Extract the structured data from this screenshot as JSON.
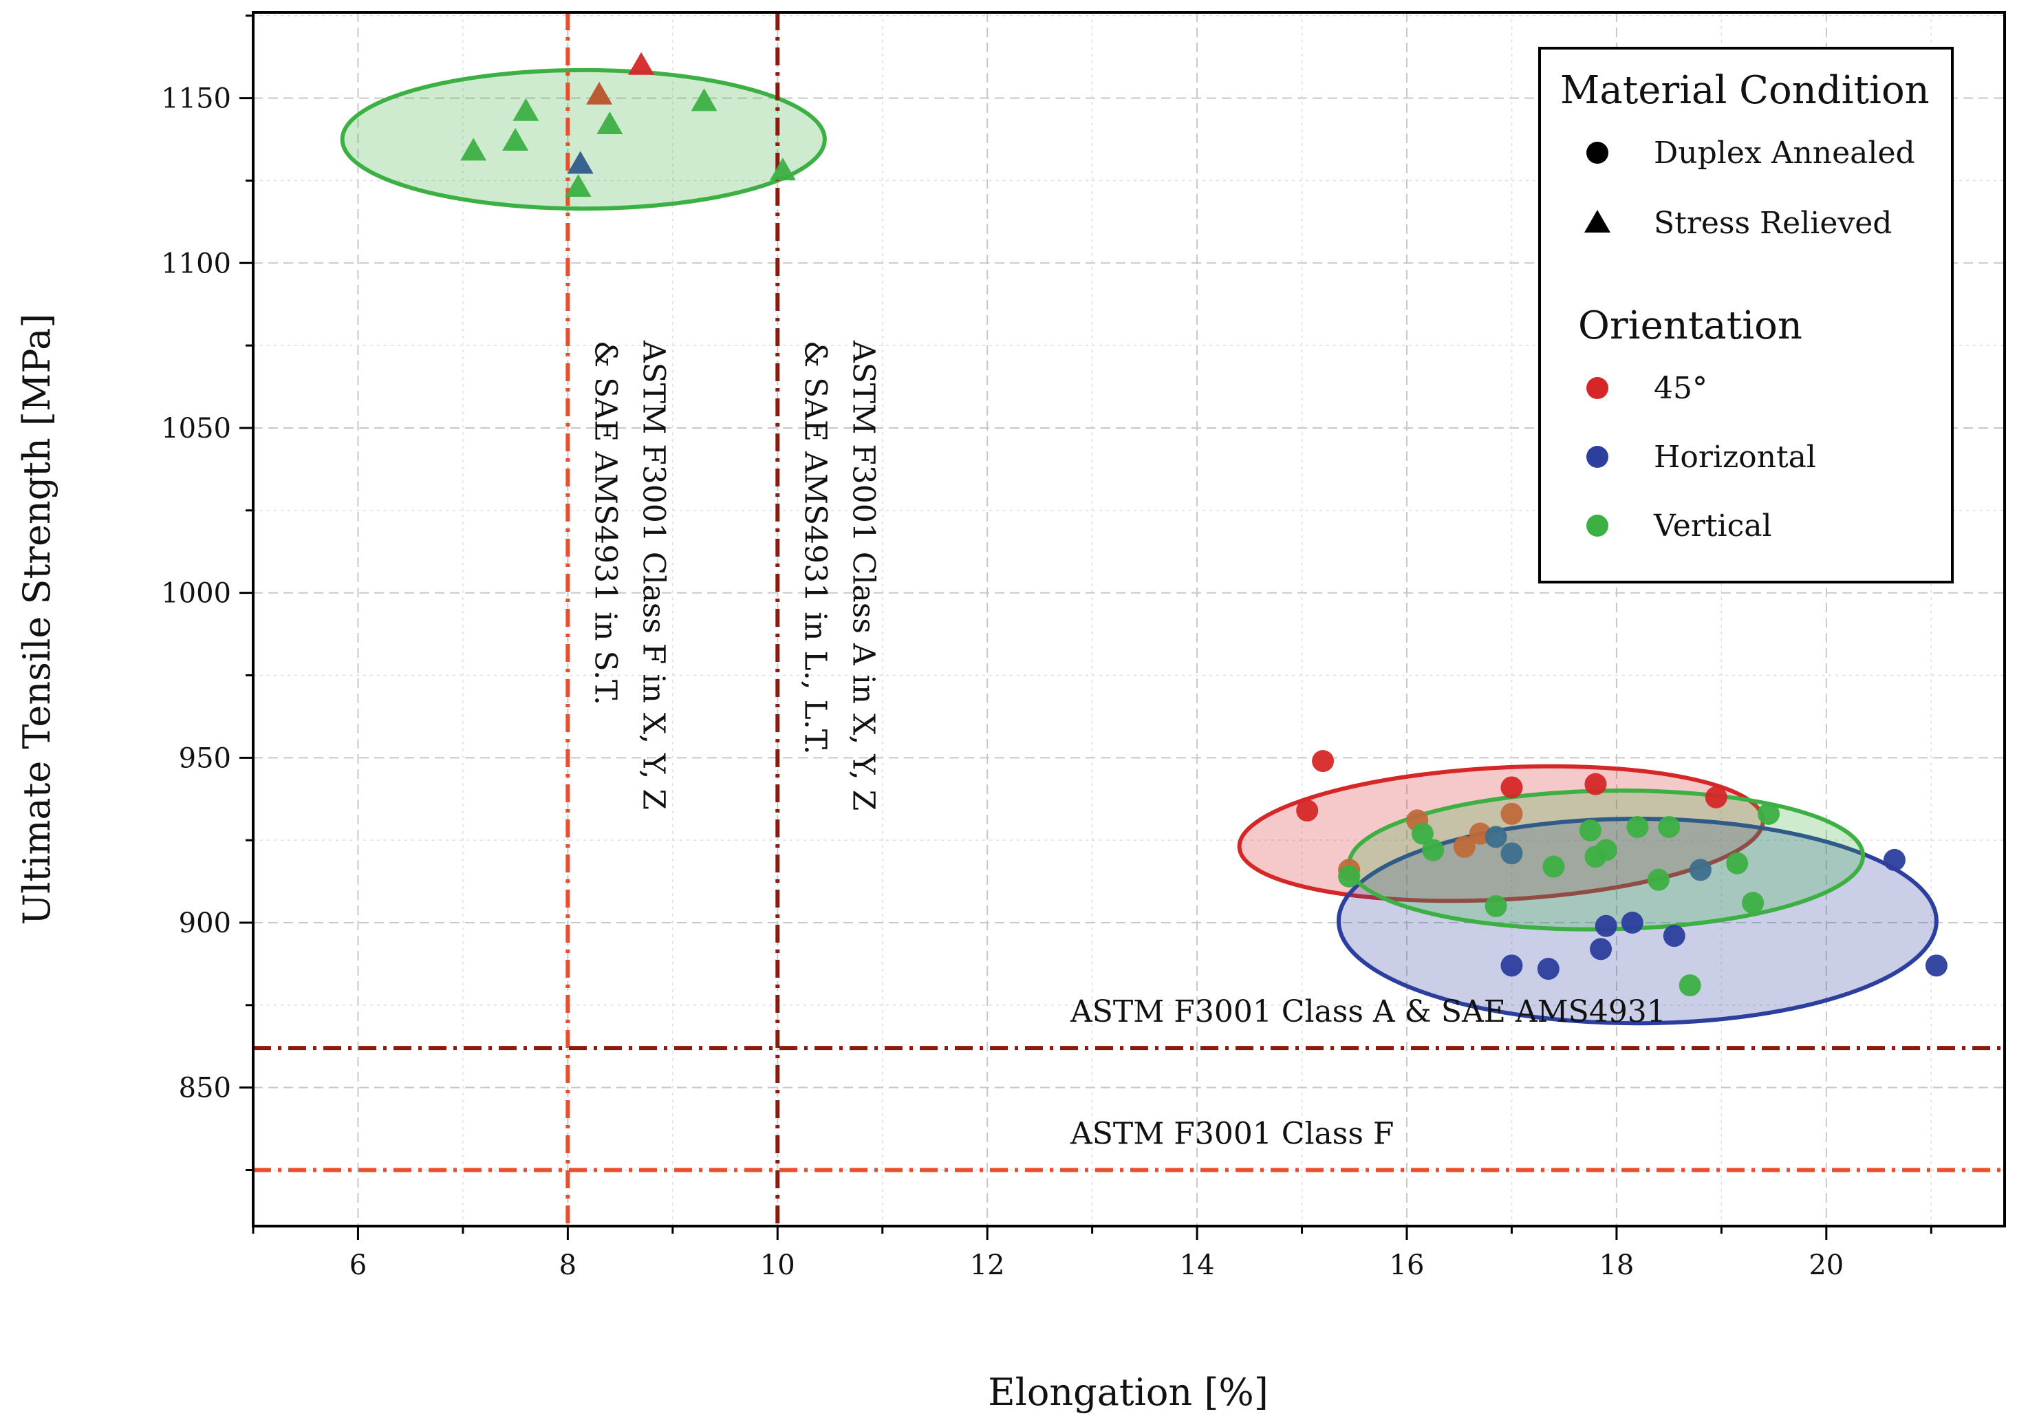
{
  "chart_data": {
    "type": "scatter",
    "xlabel": "Elongation [%]",
    "ylabel": "Ultimate Tensile Strength [MPa]",
    "xlim": [
      5.0,
      21.7
    ],
    "ylim": [
      808,
      1176
    ],
    "xticks": [
      6,
      8,
      10,
      12,
      14,
      16,
      18,
      20
    ],
    "yticks": [
      850,
      900,
      950,
      1000,
      1050,
      1100,
      1150
    ],
    "grid": true,
    "colors": {
      "45deg": "#d62728",
      "horizontal": "#2c3e9e",
      "vertical": "#3cb043",
      "classF": "#e8502d",
      "classA": "#8b1a10"
    },
    "series": [
      {
        "name": "Stress Relieved - Vertical",
        "marker": "triangle",
        "color": "#3cb043",
        "points": [
          [
            7.1,
            1134
          ],
          [
            7.5,
            1137
          ],
          [
            7.6,
            1146
          ],
          [
            8.1,
            1123
          ],
          [
            8.4,
            1142
          ],
          [
            9.3,
            1149
          ],
          [
            10.05,
            1128
          ]
        ]
      },
      {
        "name": "Stress Relieved - 45°",
        "marker": "triangle",
        "color": "#d62728",
        "points": [
          [
            8.7,
            1160
          ]
        ]
      },
      {
        "name": "Stress Relieved - 45°/Vertical",
        "marker": "triangle",
        "color": "#b8542a",
        "points": [
          [
            8.3,
            1151
          ]
        ]
      },
      {
        "name": "Stress Relieved - Horizontal",
        "marker": "triangle",
        "color": "#2f5c8a",
        "points": [
          [
            8.12,
            1130
          ]
        ]
      },
      {
        "name": "Duplex Annealed - 45°",
        "marker": "circle",
        "color": "#d62728",
        "points": [
          [
            15.05,
            934
          ],
          [
            15.2,
            949
          ],
          [
            17.0,
            941
          ],
          [
            17.8,
            942
          ],
          [
            18.95,
            938
          ]
        ]
      },
      {
        "name": "Duplex Annealed - 45°/Vertical",
        "marker": "circle",
        "color": "#bf6a3a",
        "points": [
          [
            16.1,
            931
          ],
          [
            16.55,
            923
          ],
          [
            16.7,
            927
          ],
          [
            17.0,
            933
          ],
          [
            15.45,
            916
          ]
        ]
      },
      {
        "name": "Duplex Annealed - Horizontal",
        "marker": "circle",
        "color": "#2c3e9e",
        "points": [
          [
            17.0,
            887
          ],
          [
            17.35,
            886
          ],
          [
            17.85,
            892
          ],
          [
            17.9,
            899
          ],
          [
            18.15,
            900
          ],
          [
            18.55,
            896
          ],
          [
            20.65,
            919
          ],
          [
            21.05,
            887
          ]
        ]
      },
      {
        "name": "Duplex Annealed - Horizontal/Vertical",
        "marker": "circle",
        "color": "#3d6f8c",
        "points": [
          [
            16.85,
            926
          ],
          [
            17.0,
            921
          ],
          [
            18.8,
            916
          ]
        ]
      },
      {
        "name": "Duplex Annealed - Vertical",
        "marker": "circle",
        "color": "#3cb043",
        "points": [
          [
            15.45,
            914
          ],
          [
            16.15,
            927
          ],
          [
            16.25,
            922
          ],
          [
            16.85,
            905
          ],
          [
            17.4,
            917
          ],
          [
            17.75,
            928
          ],
          [
            17.8,
            920
          ],
          [
            17.9,
            922
          ],
          [
            18.2,
            929
          ],
          [
            18.4,
            913
          ],
          [
            18.5,
            929
          ],
          [
            18.7,
            881
          ],
          [
            19.15,
            918
          ],
          [
            19.3,
            906
          ],
          [
            19.45,
            933
          ]
        ]
      }
    ],
    "ellipses": [
      {
        "name": "Stress Relieved - Vertical region",
        "color": "#3cb043",
        "center": [
          8.15,
          1137.5
        ],
        "radii": [
          2.3,
          21
        ]
      },
      {
        "name": "Duplex Annealed - 45° region",
        "color": "#d62728",
        "center": [
          16.9,
          927
        ],
        "radii": [
          2.5,
          20
        ],
        "rotate": -3
      },
      {
        "name": "Duplex Annealed - Horizontal region",
        "color": "#2c3e9e",
        "center": [
          18.2,
          900.5
        ],
        "radii": [
          2.85,
          31
        ]
      },
      {
        "name": "Duplex Annealed - Vertical region",
        "color": "#3cb043",
        "center": [
          17.9,
          919
        ],
        "radii": [
          2.45,
          21
        ],
        "rotate": -1
      }
    ],
    "reference_lines": [
      {
        "orientation": "vertical",
        "value": 8,
        "color": "#e8502d",
        "label_lines": [
          "ASTM F3001 Class F in X, Y, Z",
          "& SAE AMS4931 in S.T."
        ]
      },
      {
        "orientation": "vertical",
        "value": 10,
        "color": "#8b1a10",
        "label_lines": [
          "ASTM F3001 Class A in X, Y, Z",
          "& SAE AMS4931 in L., L.T."
        ]
      },
      {
        "orientation": "horizontal",
        "value": 862,
        "color": "#8b1a10",
        "label": "ASTM F3001 Class A & SAE AMS4931"
      },
      {
        "orientation": "horizontal",
        "value": 825,
        "color": "#e8502d",
        "label": "ASTM F3001 Class F"
      }
    ],
    "legend": {
      "placement": "top-right",
      "condition_title": "Material Condition",
      "condition_items": [
        {
          "marker": "circle",
          "label": "Duplex Annealed"
        },
        {
          "marker": "triangle",
          "label": "Stress Relieved"
        }
      ],
      "orientation_title": "Orientation",
      "orientation_items": [
        {
          "color": "#d62728",
          "label": "45°"
        },
        {
          "color": "#2c3e9e",
          "label": "Horizontal"
        },
        {
          "color": "#3cb043",
          "label": "Vertical"
        }
      ]
    }
  }
}
